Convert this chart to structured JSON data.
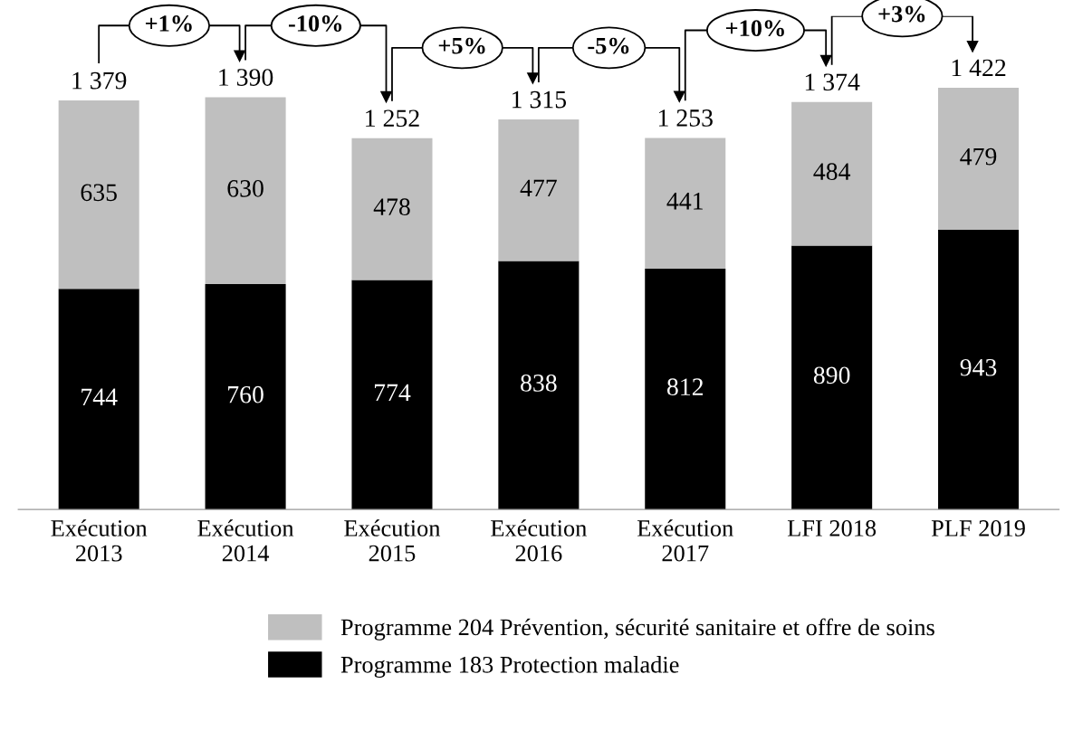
{
  "chart_data": {
    "type": "bar",
    "stacked": true,
    "categories": [
      "Exécution\n2013",
      "Exécution\n2014",
      "Exécution\n2015",
      "Exécution\n2016",
      "Exécution\n2017",
      "LFI 2018",
      "PLF 2019"
    ],
    "series": [
      {
        "name": "Programme 183 Protection maladie",
        "color": "#000000",
        "values": [
          744,
          760,
          774,
          838,
          812,
          890,
          943
        ]
      },
      {
        "name": "Programme 204 Prévention, sécurité sanitaire et offre de soins",
        "color": "#bfbfbf",
        "values": [
          635,
          630,
          478,
          477,
          441,
          484,
          479
        ]
      }
    ],
    "totals": [
      "1 379",
      "1 390",
      "1 252",
      "1 315",
      "1 253",
      "1 374",
      "1 422"
    ],
    "annotations": [
      "+1%",
      "-10%",
      "+5%",
      "-5%",
      "+10%",
      "+3%"
    ],
    "data_labels": true,
    "grid": false,
    "legend": "bottom",
    "tick_labels": "x"
  }
}
